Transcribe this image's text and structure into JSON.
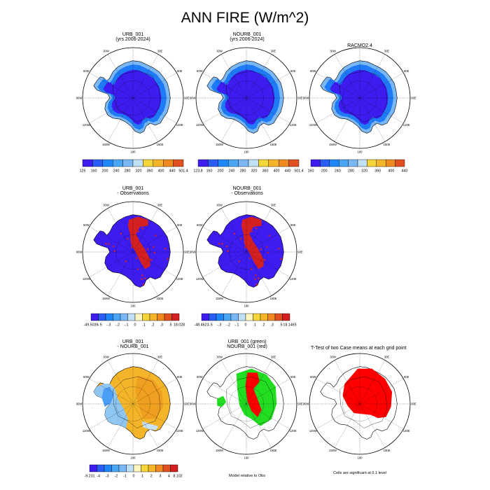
{
  "page_title": "ANN FIRE (W/m^2)",
  "coord_labels": [
    "30W",
    "30E",
    "60W",
    "60E",
    "90W",
    "90E",
    "120W",
    "120E",
    "150W",
    "150E",
    "180"
  ],
  "colors": {
    "ice_deep": "#3d1cf0",
    "ice_mid": "#1e7bf5",
    "ice_light": "#7ab8f5",
    "pos_red": "#d42020",
    "neg_blue": "#3d1cf0",
    "green": "#22dd22",
    "sig_red": "#ff0000"
  },
  "panels": {
    "p1": {
      "title1": "URB_001",
      "title2": "(yrs 2006-2024)"
    },
    "p2": {
      "title1": "NOURB_001",
      "title2": "(yrs 2006-2024)"
    },
    "p3": {
      "title1": "RACMO2.4"
    },
    "p4": {
      "title1": "URB_001",
      "title2": "- Observations"
    },
    "p5": {
      "title1": "NOURB_001",
      "title2": "- Observations"
    },
    "p7": {
      "title1": "URB_001",
      "title2": "- NOURB_001"
    },
    "p8": {
      "title1": "URB_001 (green)",
      "title2": "NOURB_001 (red)",
      "footer": "Model relative to Obs"
    },
    "p9": {
      "title1": "T-Test of two Case means at each grid point",
      "footer": "Cells are significant at 0.1 level"
    }
  },
  "colorbars": {
    "cb1": {
      "labels": [
        "125",
        "160",
        "200",
        "240",
        "280",
        "320",
        "360",
        "400",
        "440",
        "501.4"
      ]
    },
    "cb2": {
      "labels": [
        "123.8",
        "160",
        "200",
        "240",
        "280",
        "320",
        "360",
        "400",
        "440",
        "501.4"
      ]
    },
    "cb3": {
      "labels": [
        "160",
        "200",
        "240",
        "280",
        "320",
        "360",
        "400",
        "440"
      ]
    },
    "cb4": {
      "labels": [
        "-49.5039",
        "-.5",
        "-.3",
        "-.2",
        "-.1",
        "0",
        ".1",
        ".2",
        ".3",
        ".5",
        "18.028"
      ]
    },
    "cb5": {
      "labels": [
        "-48.4623",
        "-.5",
        "-.3",
        "-.2",
        "-.1",
        "0",
        ".1",
        ".2",
        ".3",
        ".5",
        "18.1465"
      ]
    },
    "cb7": {
      "labels": [
        "-9.231",
        "-4",
        "-3",
        "-2",
        "-1",
        "0",
        "1",
        "2",
        "3",
        "4",
        "8.102"
      ]
    }
  }
}
